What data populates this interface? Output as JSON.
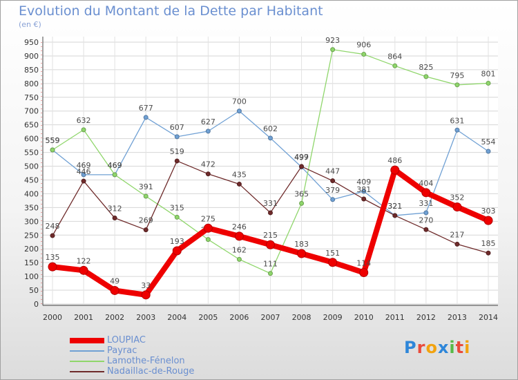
{
  "title": "Evolution du Montant de la Dette par Habitant",
  "subtitle": "(en €)",
  "brand": {
    "text": "Proxiti",
    "letters": [
      {
        "ch": "P",
        "color": "#2e86d9"
      },
      {
        "ch": "r",
        "color": "#e94b3c"
      },
      {
        "ch": "o",
        "color": "#f2a30f"
      },
      {
        "ch": "x",
        "color": "#2e86d9"
      },
      {
        "ch": "i",
        "color": "#58b947"
      },
      {
        "ch": "t",
        "color": "#e94b3c"
      },
      {
        "ch": "i",
        "color": "#f2a30f"
      }
    ]
  },
  "chart_data": {
    "type": "line",
    "title": "Evolution du Montant de la Dette par Habitant",
    "ylabel": "(en €)",
    "xlabel": "",
    "ylim": [
      0,
      950
    ],
    "yticks": [
      0,
      50,
      100,
      150,
      200,
      250,
      300,
      350,
      400,
      450,
      500,
      550,
      600,
      650,
      700,
      750,
      800,
      850,
      900,
      950
    ],
    "grid": true,
    "legend_placement": "bottom-left",
    "x": [
      "2000",
      "2001",
      "2002",
      "2003",
      "2004",
      "2005",
      "2006",
      "2007",
      "2008",
      "2009",
      "2010",
      "2011",
      "2012",
      "2013",
      "2014"
    ],
    "series": [
      {
        "name": "LOUPIAC",
        "color": "#ee0000",
        "values": [
          135,
          122,
          49,
          33,
          193,
          275,
          246,
          215,
          183,
          151,
          114,
          486,
          404,
          352,
          303
        ]
      },
      {
        "name": "Payrac",
        "color": "#6fa0d4",
        "values": [
          559,
          469,
          469,
          677,
          607,
          627,
          700,
          602,
          497,
          379,
          409,
          321,
          331,
          631,
          554
        ]
      },
      {
        "name": "Lamothe-Fénelon",
        "color": "#8fd66b",
        "values": [
          559,
          632,
          469,
          391,
          315,
          234,
          162,
          111,
          365,
          923,
          906,
          864,
          825,
          795,
          801
        ]
      },
      {
        "name": "Nadaillac-de-Rouge",
        "color": "#6e2a2a",
        "values": [
          248,
          446,
          312,
          269,
          519,
          472,
          435,
          331,
          499,
          447,
          381,
          321,
          270,
          217,
          185
        ]
      }
    ]
  }
}
